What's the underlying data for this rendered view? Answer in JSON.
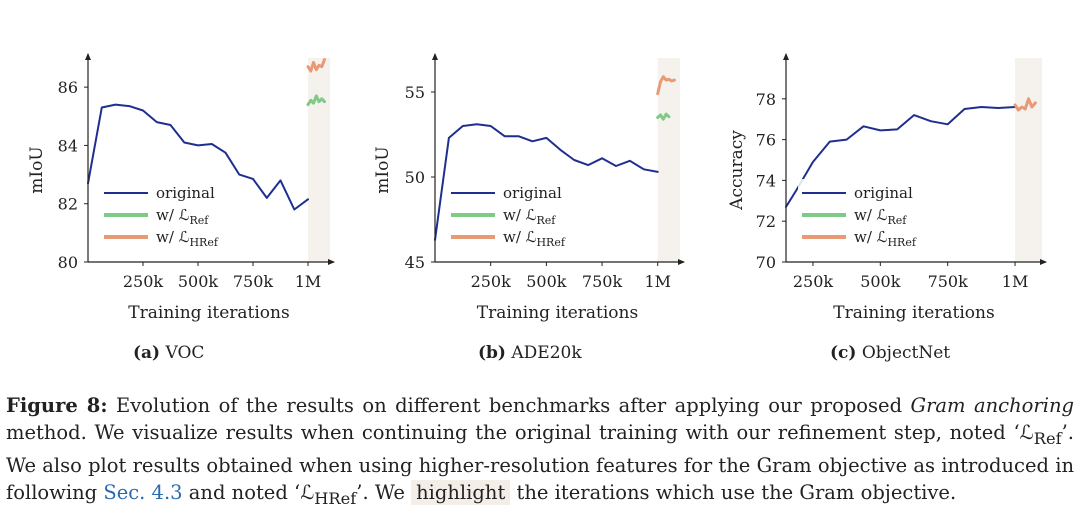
{
  "legend": {
    "original": "original",
    "ref": {
      "prefix": "w/ ",
      "sym": "ℒ",
      "sub": "Ref"
    },
    "href": {
      "prefix": "w/ ",
      "sym": "ℒ",
      "sub": "HRef"
    }
  },
  "colors": {
    "original": "#1f2f8f",
    "ref": "#7fca86",
    "href": "#e89a74",
    "highlight": "#f5f2ed"
  },
  "chart_data": [
    {
      "type": "line",
      "xlabel": "Training iterations",
      "ylabel": "mIoU",
      "xlim": [
        0,
        1100000
      ],
      "ylim": [
        80,
        87
      ],
      "xticks": [
        250000,
        500000,
        750000,
        1000000
      ],
      "xticklabels": [
        "250k",
        "500k",
        "750k",
        "1M"
      ],
      "yticks": [
        80,
        82,
        84,
        86
      ],
      "highlight_from": 1000000,
      "caption_label": "(a)",
      "caption_name": "VOC",
      "series": [
        {
          "name": "original",
          "color": "#1f2f8f",
          "x": [
            0,
            62500,
            125000,
            187500,
            250000,
            312500,
            375000,
            437500,
            500000,
            562500,
            625000,
            687500,
            750000,
            812500,
            875000,
            937500,
            1000000
          ],
          "y": [
            82.7,
            85.3,
            85.4,
            85.35,
            85.2,
            84.8,
            84.7,
            84.1,
            84.0,
            84.05,
            83.75,
            83.0,
            82.85,
            82.2,
            82.8,
            81.8,
            82.15
          ]
        },
        {
          "name": "w/ ℒRef",
          "color": "#7fca86",
          "x": [
            1000000,
            1012500,
            1025000,
            1037500,
            1050000,
            1062500,
            1075000
          ],
          "y": [
            85.4,
            85.55,
            85.45,
            85.7,
            85.5,
            85.6,
            85.5
          ]
        },
        {
          "name": "w/ ℒHRef",
          "color": "#e89a74",
          "x": [
            1000000,
            1012500,
            1025000,
            1037500,
            1050000,
            1062500,
            1075000
          ],
          "y": [
            86.7,
            86.55,
            86.85,
            86.6,
            86.75,
            86.7,
            86.95
          ]
        }
      ]
    },
    {
      "type": "line",
      "xlabel": "Training iterations",
      "ylabel": "mIoU",
      "xlim": [
        0,
        1100000
      ],
      "ylim": [
        45,
        57
      ],
      "xticks": [
        250000,
        500000,
        750000,
        1000000
      ],
      "xticklabels": [
        "250k",
        "500k",
        "750k",
        "1M"
      ],
      "yticks": [
        45,
        50,
        55
      ],
      "highlight_from": 1000000,
      "caption_label": "(b)",
      "caption_name": "ADE20k",
      "series": [
        {
          "name": "original",
          "color": "#1f2f8f",
          "x": [
            0,
            62500,
            125000,
            187500,
            250000,
            312500,
            375000,
            437500,
            500000,
            562500,
            625000,
            687500,
            750000,
            812500,
            875000,
            937500,
            1000000
          ],
          "y": [
            46.3,
            52.3,
            53.0,
            53.1,
            53.0,
            52.4,
            52.4,
            52.1,
            52.3,
            51.6,
            51.0,
            50.7,
            51.1,
            50.65,
            50.95,
            50.45,
            50.3
          ]
        },
        {
          "name": "w/ ℒRef",
          "color": "#7fca86",
          "x": [
            1000000,
            1012500,
            1025000,
            1037500,
            1050000
          ],
          "y": [
            53.5,
            53.65,
            53.4,
            53.7,
            53.55
          ]
        },
        {
          "name": "w/ ℒHRef",
          "color": "#e89a74",
          "x": [
            1000000,
            1012500,
            1025000,
            1037500,
            1050000,
            1062500,
            1075000
          ],
          "y": [
            54.9,
            55.6,
            55.9,
            55.7,
            55.75,
            55.65,
            55.7
          ]
        }
      ]
    },
    {
      "type": "line",
      "xlabel": "Training iterations",
      "ylabel": "Accuracy",
      "xlim": [
        150000,
        1100000
      ],
      "ylim": [
        70,
        80
      ],
      "xticks": [
        250000,
        500000,
        750000,
        1000000
      ],
      "xticklabels": [
        "250k",
        "500k",
        "750k",
        "1M"
      ],
      "yticks": [
        70,
        72,
        74,
        76,
        78
      ],
      "highlight_from": 1000000,
      "caption_label": "(c)",
      "caption_name": "ObjectNet",
      "series": [
        {
          "name": "original",
          "color": "#1f2f8f",
          "x": [
            150000,
            187500,
            250000,
            312500,
            375000,
            437500,
            500000,
            562500,
            625000,
            687500,
            750000,
            812500,
            875000,
            937500,
            1000000
          ],
          "y": [
            72.7,
            73.5,
            74.9,
            75.9,
            76.0,
            76.65,
            76.45,
            76.5,
            77.2,
            76.9,
            76.75,
            77.5,
            77.6,
            77.55,
            77.6
          ]
        },
        {
          "name": "w/ ℒHRef",
          "color": "#e89a74",
          "x": [
            1000000,
            1012500,
            1025000,
            1037500,
            1050000,
            1062500,
            1075000
          ],
          "y": [
            77.7,
            77.45,
            77.6,
            77.5,
            78.0,
            77.6,
            77.8
          ]
        }
      ]
    }
  ],
  "caption": {
    "label": "Figure 8:",
    "t1": " Evolution of the results on different benchmarks after applying our proposed ",
    "em": "Gram anchoring",
    "t2": " method. We visualize results when continuing the original training with our refinement step, noted ‘ℒ",
    "sub1": "Ref",
    "t3": "’. We also plot results obtained when using higher-resolution features for the Gram objective as introduced in following ",
    "ref": "Sec. 4.3",
    "t4": " and noted ‘ℒ",
    "sub2": "HRef",
    "t5": "’. We ",
    "hl": "highlight",
    "t6": " the iterations which use the Gram objective."
  }
}
